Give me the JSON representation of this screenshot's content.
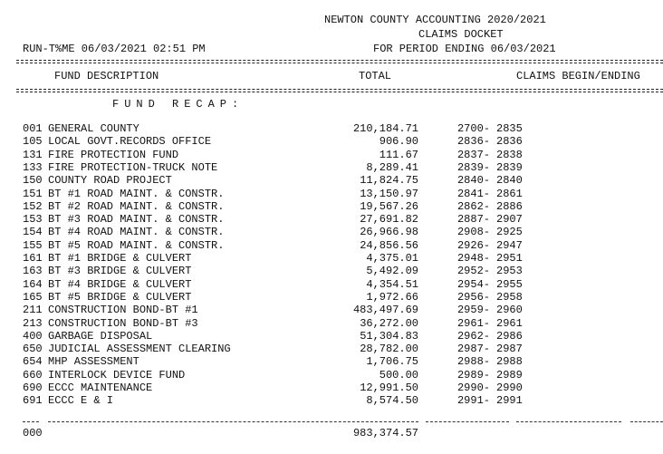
{
  "header": {
    "org_title": "NEWTON COUNTY ACCOUNTING 2020/2021",
    "report_title": "CLAIMS DOCKET",
    "period": "FOR PERIOD ENDING 06/03/2021",
    "run_time": "RUN-T%ME 06/03/2021 02:51 PM"
  },
  "columns": {
    "fund_description": "FUND DESCRIPTION",
    "total": "TOTAL",
    "claims": "CLAIMS BEGIN/ENDING"
  },
  "section_title": "FUND RECAP:",
  "rows": [
    {
      "code": "001",
      "description": "GENERAL COUNTY",
      "total": "210,184.71",
      "begin": "2700-",
      "end": "2835"
    },
    {
      "code": "105",
      "description": "LOCAL GOVT.RECORDS OFFICE",
      "total": "906.90",
      "begin": "2836-",
      "end": "2836"
    },
    {
      "code": "131",
      "description": "FIRE PROTECTION FUND",
      "total": "111.67",
      "begin": "2837-",
      "end": "2838"
    },
    {
      "code": "133",
      "description": "FIRE PROTECTION-TRUCK NOTE",
      "total": "8,289.41",
      "begin": "2839-",
      "end": "2839"
    },
    {
      "code": "150",
      "description": "COUNTY ROAD PROJECT",
      "total": "11,824.75",
      "begin": "2840-",
      "end": "2840"
    },
    {
      "code": "151",
      "description": "BT #1 ROAD MAINT. & CONSTR.",
      "total": "13,150.97",
      "begin": "2841-",
      "end": "2861"
    },
    {
      "code": "152",
      "description": "BT #2 ROAD MAINT. & CONSTR.",
      "total": "19,567.26",
      "begin": "2862-",
      "end": "2886"
    },
    {
      "code": "153",
      "description": "BT #3 ROAD MAINT. & CONSTR.",
      "total": "27,691.82",
      "begin": "2887-",
      "end": "2907"
    },
    {
      "code": "154",
      "description": "BT #4 ROAD MAINT. & CONSTR.",
      "total": "26,966.98",
      "begin": "2908-",
      "end": "2925"
    },
    {
      "code": "155",
      "description": "BT #5 ROAD MAINT. & CONSTR.",
      "total": "24,856.56",
      "begin": "2926-",
      "end": "2947"
    },
    {
      "code": "161",
      "description": "BT #1 BRIDGE & CULVERT",
      "total": "4,375.01",
      "begin": "2948-",
      "end": "2951"
    },
    {
      "code": "163",
      "description": "BT #3 BRIDGE & CULVERT",
      "total": "5,492.09",
      "begin": "2952-",
      "end": "2953"
    },
    {
      "code": "164",
      "description": "BT #4 BRIDGE & CULVERT",
      "total": "4,354.51",
      "begin": "2954-",
      "end": "2955"
    },
    {
      "code": "165",
      "description": "BT #5 BRIDGE & CULVERT",
      "total": "1,972.66",
      "begin": "2956-",
      "end": "2958"
    },
    {
      "code": "211",
      "description": "CONSTRUCTION BOND-BT #1",
      "total": "483,497.69",
      "begin": "2959-",
      "end": "2960"
    },
    {
      "code": "213",
      "description": "CONSTRUCTION BOND-BT #3",
      "total": "36,272.00",
      "begin": "2961-",
      "end": "2961"
    },
    {
      "code": "400",
      "description": "GARBAGE DISPOSAL",
      "total": "51,304.83",
      "begin": "2962-",
      "end": "2986"
    },
    {
      "code": "650",
      "description": "JUDICIAL ASSESSMENT CLEARING",
      "total": "28,782.00",
      "begin": "2987-",
      "end": "2987"
    },
    {
      "code": "654",
      "description": "MHP ASSESSMENT",
      "total": "1,706.75",
      "begin": "2988-",
      "end": "2988"
    },
    {
      "code": "660",
      "description": "INTERLOCK DEVICE FUND",
      "total": "500.00",
      "begin": "2989-",
      "end": "2989"
    },
    {
      "code": "690",
      "description": "ECCC MAINTENANCE",
      "total": "12,991.50",
      "begin": "2990-",
      "end": "2990"
    },
    {
      "code": "691",
      "description": "ECCC E & I",
      "total": "8,574.50",
      "begin": "2991-",
      "end": "2991"
    }
  ],
  "grand_total": {
    "code": "000",
    "total": "983,374.57"
  }
}
